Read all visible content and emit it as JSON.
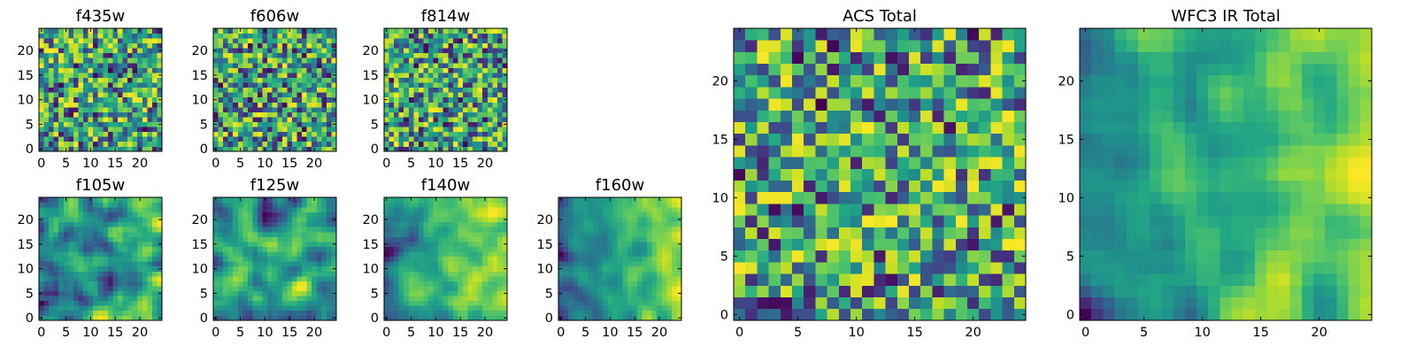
{
  "colormap": "viridis",
  "chart_data": [
    {
      "type": "heatmap",
      "title": "f435w",
      "size": 25,
      "xlim": [
        0,
        24
      ],
      "ylim": [
        0,
        24
      ],
      "xticks": [
        0,
        5,
        10,
        15,
        20
      ],
      "yticks": [
        0,
        5,
        10,
        15,
        20
      ],
      "texture": "noise",
      "seed": 11,
      "trend": 0
    },
    {
      "type": "heatmap",
      "title": "f606w",
      "size": 25,
      "xlim": [
        0,
        24
      ],
      "ylim": [
        0,
        24
      ],
      "xticks": [
        0,
        5,
        10,
        15,
        20
      ],
      "yticks": [
        0,
        5,
        10,
        15,
        20
      ],
      "texture": "noise",
      "seed": 23,
      "trend": 0
    },
    {
      "type": "heatmap",
      "title": "f814w",
      "size": 25,
      "xlim": [
        0,
        24
      ],
      "ylim": [
        0,
        24
      ],
      "xticks": [
        0,
        5,
        10,
        15,
        20
      ],
      "yticks": [
        0,
        5,
        10,
        15,
        20
      ],
      "texture": "noise",
      "seed": 37,
      "trend": 0
    },
    {
      "type": "heatmap",
      "title": "f105w",
      "size": 25,
      "xlim": [
        0,
        24
      ],
      "ylim": [
        0,
        24
      ],
      "xticks": [
        0,
        5,
        10,
        15,
        20
      ],
      "yticks": [
        0,
        5,
        10,
        15,
        20
      ],
      "texture": "smooth",
      "seed": 41,
      "trend": 0.05
    },
    {
      "type": "heatmap",
      "title": "f125w",
      "size": 25,
      "xlim": [
        0,
        24
      ],
      "ylim": [
        0,
        24
      ],
      "xticks": [
        0,
        5,
        10,
        15,
        20
      ],
      "yticks": [
        0,
        5,
        10,
        15,
        20
      ],
      "texture": "smooth",
      "seed": 53,
      "trend": 0.12
    },
    {
      "type": "heatmap",
      "title": "f140w",
      "size": 25,
      "xlim": [
        0,
        24
      ],
      "ylim": [
        0,
        24
      ],
      "xticks": [
        0,
        5,
        10,
        15,
        20
      ],
      "yticks": [
        0,
        5,
        10,
        15,
        20
      ],
      "texture": "smooth",
      "seed": 67,
      "trend": 0.28
    },
    {
      "type": "heatmap",
      "title": "f160w",
      "size": 25,
      "xlim": [
        0,
        24
      ],
      "ylim": [
        0,
        24
      ],
      "xticks": [
        0,
        5,
        10,
        15,
        20
      ],
      "yticks": [
        0,
        5,
        10,
        15,
        20
      ],
      "texture": "smooth",
      "seed": 79,
      "trend": 0.35
    },
    {
      "type": "heatmap",
      "title": "ACS Total",
      "size": 25,
      "xlim": [
        0,
        24
      ],
      "ylim": [
        0,
        24
      ],
      "xticks": [
        0,
        5,
        10,
        15,
        20
      ],
      "yticks": [
        0,
        5,
        10,
        15,
        20
      ],
      "texture": "noise",
      "seed": 97,
      "trend": 0
    },
    {
      "type": "heatmap",
      "title": "WFC3 IR Total",
      "size": 25,
      "xlim": [
        0,
        24
      ],
      "ylim": [
        0,
        24
      ],
      "xticks": [
        0,
        5,
        10,
        15,
        20
      ],
      "yticks": [
        0,
        5,
        10,
        15,
        20
      ],
      "texture": "smooth",
      "seed": 131,
      "trend": 0.35
    }
  ]
}
